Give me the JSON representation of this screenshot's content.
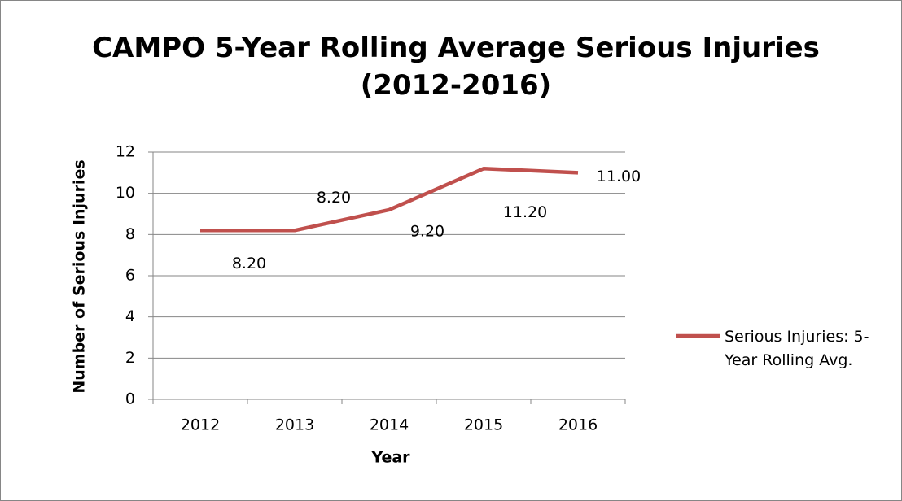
{
  "chart_data": {
    "type": "line",
    "title": "CAMPO 5-Year Rolling Average Serious Injuries (2012-2016)",
    "x_label": "Year",
    "y_label": "Number of Serious Injuries",
    "categories": [
      "2012",
      "2013",
      "2014",
      "2015",
      "2016"
    ],
    "series": [
      {
        "name": "Serious Injuries: 5-Year Rolling Avg.",
        "color": "#c0504d",
        "values": [
          8.2,
          8.2,
          9.2,
          11.2,
          11.0
        ],
        "value_labels": [
          "8.20",
          "8.20",
          "9.20",
          "11.20",
          "11.00"
        ]
      }
    ],
    "ylim": [
      0,
      12
    ],
    "yticks": [
      0,
      2,
      4,
      6,
      8,
      10,
      12
    ],
    "grid": true,
    "legend": "right"
  }
}
